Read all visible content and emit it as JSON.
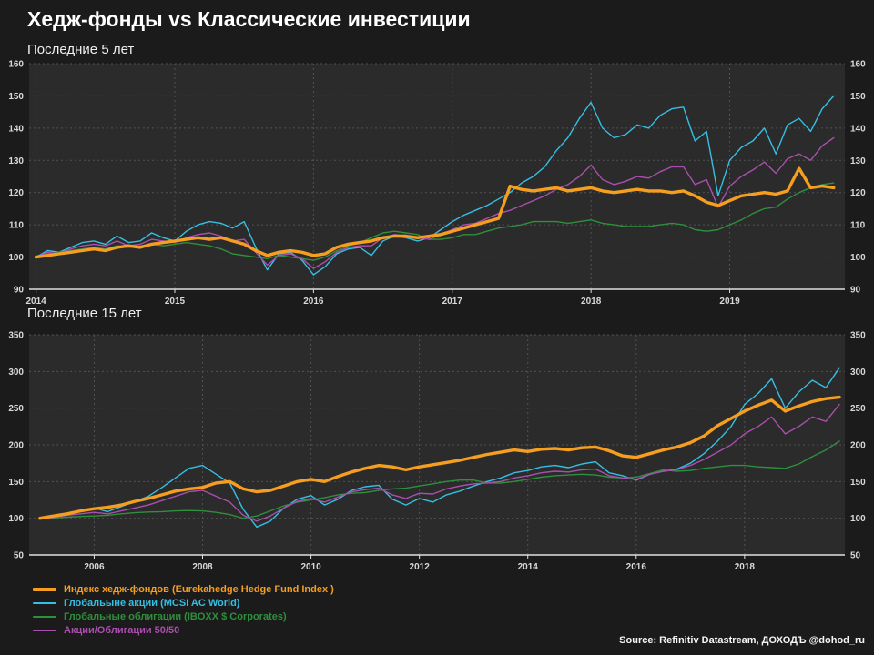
{
  "page": {
    "title": "Хедж-фонды vs Классические инвестиции",
    "source": "Source: Refinitiv Datastream, ДОХОДЪ @dohod_ru",
    "background": "#1b1b1b",
    "plot_background": "#2b2b2b",
    "grid_color": "#525252",
    "axis_color": "#e0e0e0",
    "text_color": "#ffffff"
  },
  "legend": [
    {
      "label": "Индекс хедж-фондов (Eurekahedge Hedge Fund Index )",
      "color": "#f59e1f",
      "thick": true
    },
    {
      "label": "Глобальыне акции (MCSI AC World)",
      "color": "#35bfe3",
      "thick": false
    },
    {
      "label": "Глобальные облигации (IBOXX $ Corporates)",
      "color": "#2e8f3c",
      "thick": false
    },
    {
      "label": "Акции/Облигации 50/50",
      "color": "#aa4fae",
      "thick": false
    }
  ],
  "chart_data": [
    {
      "type": "line",
      "title": "Последние 5 лет",
      "x_start": 2014.0,
      "x_step": 0.0833333,
      "xlim": [
        2013.95,
        2019.83
      ],
      "ylim": [
        90,
        160
      ],
      "y_ticks": [
        90,
        100,
        110,
        120,
        130,
        140,
        150,
        160
      ],
      "x_ticks": [
        2014,
        2015,
        2016,
        2017,
        2018,
        2019
      ],
      "grid": true,
      "legend_position": "bottom-left",
      "series": [
        {
          "id": "global-equities",
          "name": "Глобальыне акции (MCSI AC World)",
          "color": "#35bfe3",
          "width": 1.4,
          "values": [
            100,
            102,
            101.5,
            103,
            104.5,
            105,
            104,
            106.5,
            104.5,
            105,
            107.5,
            106,
            105,
            108,
            110,
            111,
            110.5,
            109,
            111,
            103,
            96,
            101,
            101.5,
            99,
            94.5,
            97,
            101,
            102.5,
            103,
            100.5,
            105,
            106.5,
            106,
            105,
            106,
            108.5,
            111,
            113,
            114.5,
            116,
            118,
            120,
            123,
            125,
            128,
            133,
            137,
            143,
            148,
            140,
            137,
            138,
            141,
            140,
            144,
            146,
            146.5,
            136,
            139,
            119,
            130,
            134,
            136,
            140,
            132,
            141,
            143,
            139,
            146,
            150
          ]
        },
        {
          "id": "global-bonds",
          "name": "Глобальные облигации (IBOXX $ Corporates)",
          "color": "#2e8f3c",
          "width": 1.4,
          "values": [
            100,
            101,
            101.5,
            102,
            102.5,
            103,
            102.5,
            103.5,
            103,
            103.5,
            104,
            103.5,
            104,
            104.5,
            104,
            103.5,
            102.5,
            101,
            100.5,
            100,
            99.5,
            100.5,
            100,
            99.5,
            99,
            100,
            102,
            103.5,
            104.5,
            106,
            107.5,
            108,
            107.5,
            107,
            105.5,
            105.5,
            106,
            107,
            107,
            108,
            109,
            109.5,
            110,
            111,
            111,
            111,
            110.5,
            111,
            111.5,
            110.5,
            110,
            109.5,
            109.5,
            109.5,
            110,
            110.5,
            110,
            108.5,
            108,
            108.5,
            110,
            111.5,
            113.5,
            115,
            115.5,
            118,
            120,
            121.5,
            122.5,
            123
          ]
        },
        {
          "id": "stocks-bonds-50-50",
          "name": "Акции/Облигации 50/50",
          "color": "#aa4fae",
          "width": 1.4,
          "values": [
            100,
            101.5,
            101,
            102.5,
            103.5,
            104,
            103.5,
            105,
            103.5,
            104,
            105.5,
            105,
            104.5,
            106,
            107,
            107.5,
            106.5,
            105,
            105.5,
            101.5,
            97.5,
            100.5,
            101,
            99.5,
            96.5,
            98.5,
            101.5,
            103,
            103.5,
            103.5,
            106,
            107,
            106.5,
            106,
            105.5,
            107,
            108.5,
            110,
            110.5,
            112,
            113.5,
            114.5,
            116,
            117.5,
            119,
            121,
            122.5,
            125,
            128.5,
            124,
            122.5,
            123.5,
            125,
            124.5,
            126.5,
            128,
            128,
            122.5,
            124,
            115.5,
            122,
            125,
            127,
            129.5,
            126,
            130.5,
            132,
            130,
            134.5,
            137
          ]
        },
        {
          "id": "hedge-funds",
          "name": "Индекс хедж-фондов (Eurekahedge Hedge Fund Index )",
          "color": "#f59e1f",
          "width": 3.4,
          "values": [
            100,
            100.5,
            101,
            101.5,
            102,
            102.5,
            102,
            103,
            103.5,
            103,
            104,
            104.5,
            105,
            105.5,
            106,
            105.5,
            106,
            105,
            104,
            102,
            100.5,
            101.5,
            102,
            101.5,
            100.5,
            101,
            103,
            104,
            104.5,
            105,
            106,
            106.5,
            106.5,
            106,
            106.5,
            107,
            108,
            109,
            110,
            111,
            112,
            122,
            121,
            120.5,
            121,
            121.5,
            120.5,
            121,
            121.5,
            120.5,
            120,
            120.5,
            121,
            120.5,
            120.5,
            120,
            120.5,
            119,
            117,
            116,
            117.5,
            119,
            119.5,
            120,
            119.5,
            120.5,
            127.5,
            121.5,
            122,
            121.5
          ]
        }
      ]
    },
    {
      "type": "line",
      "title": "Последние 15 лет",
      "x_start": 2005.0,
      "x_step": 0.25,
      "xlim": [
        2004.8,
        2019.85
      ],
      "ylim": [
        50,
        350
      ],
      "y_ticks": [
        50,
        100,
        150,
        200,
        250,
        300,
        350
      ],
      "x_ticks": [
        2006,
        2008,
        2010,
        2012,
        2014,
        2016,
        2018
      ],
      "grid": true,
      "legend_position": "bottom-left",
      "series": [
        {
          "id": "global-equities",
          "name": "Глобальыне акции (MCSI AC World)",
          "color": "#35bfe3",
          "width": 1.4,
          "values": [
            100,
            102,
            107,
            111,
            114,
            109,
            116,
            123,
            130,
            142,
            155,
            168,
            172,
            160,
            148,
            112,
            88,
            96,
            114,
            126,
            131,
            118,
            126,
            138,
            143,
            145,
            126,
            118,
            127,
            122,
            132,
            137,
            144,
            150,
            155,
            162,
            165,
            170,
            172,
            169,
            174,
            177,
            162,
            158,
            152,
            160,
            164,
            167,
            175,
            188,
            205,
            225,
            255,
            270,
            290,
            250,
            272,
            288,
            278,
            305
          ]
        },
        {
          "id": "global-bonds",
          "name": "Глобальные облигации (IBOXX $ Corporates)",
          "color": "#2e8f3c",
          "width": 1.4,
          "values": [
            100,
            100.5,
            101.5,
            102.5,
            103,
            104,
            106,
            107.5,
            108.5,
            109,
            110,
            110.5,
            110,
            108,
            105,
            100,
            103,
            110,
            117,
            122,
            125,
            128,
            132,
            134,
            135,
            138,
            140,
            141,
            144,
            147,
            150,
            152,
            152,
            148,
            148,
            150,
            153,
            156,
            158,
            159,
            160,
            159,
            156,
            155,
            156,
            161,
            166,
            164,
            165,
            168,
            170,
            172,
            172,
            170,
            169,
            168,
            174,
            184,
            193,
            205
          ]
        },
        {
          "id": "stocks-bonds-50-50",
          "name": "Акции/Облигации 50/50",
          "color": "#aa4fae",
          "width": 1.4,
          "values": [
            100,
            101,
            104,
            106,
            108,
            106,
            110,
            114,
            118,
            124,
            130,
            136,
            138,
            130,
            122,
            104,
            96,
            103,
            114,
            123,
            127,
            122,
            129,
            136,
            139,
            141,
            132,
            127,
            134,
            133,
            140,
            144,
            147,
            148,
            150,
            155,
            158,
            162,
            164,
            163,
            166,
            167,
            158,
            155,
            153,
            160,
            164,
            166,
            172,
            180,
            190,
            200,
            215,
            225,
            238,
            215,
            225,
            238,
            232,
            255
          ]
        },
        {
          "id": "hedge-funds",
          "name": "Индекс хедж-фондов (Eurekahedge Hedge Fund Index )",
          "color": "#f59e1f",
          "width": 3.4,
          "values": [
            100,
            103,
            106,
            110,
            113,
            115,
            118,
            123,
            127,
            132,
            137,
            140,
            142,
            148,
            150,
            140,
            136,
            138,
            144,
            150,
            153,
            150,
            157,
            163,
            168,
            172,
            170,
            166,
            170,
            173,
            176,
            179,
            183,
            187,
            190,
            193,
            191,
            194,
            195,
            193,
            196,
            197,
            192,
            185,
            183,
            188,
            193,
            197,
            203,
            212,
            226,
            236,
            246,
            254,
            261,
            246,
            253,
            259,
            263,
            265
          ]
        }
      ]
    }
  ]
}
